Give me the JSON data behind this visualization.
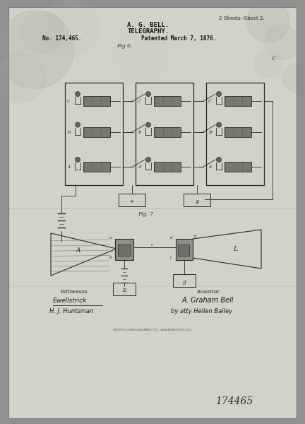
{
  "bg_color": "#909090",
  "paper_color": "#c8c8c0",
  "title_line1": "A. G. BELL.",
  "title_line2": "TELEGRAPHY.",
  "patent_no": "No. 174,465.",
  "patent_date": "Patented March 7, 1876.",
  "sheets": "2 Sheets--Sheet 2.",
  "fig6_label": "Fig 6.",
  "fig7_label": "Fig. 7",
  "witnesses_title": "Witnesses",
  "witness1": "Ewellstrick",
  "witness2": "H. J. Huntsman",
  "inventor_title": "Inventor.",
  "inventor_name": "A. Graham Bell",
  "inventor_atty": "by atty Hellen Bailey",
  "patent_number_stamp": "174465",
  "fig_width": 432,
  "fig_height": 600
}
